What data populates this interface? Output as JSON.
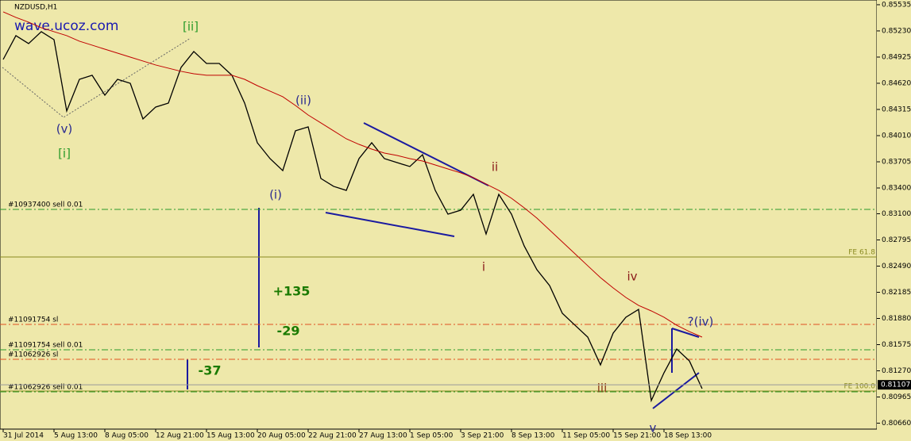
{
  "chart_data": {
    "type": "line",
    "title": "NZDUSD,H1",
    "watermark": "wave.ucoz.com",
    "categories": [
      "31 Jul 2014",
      null,
      null,
      null,
      "5 Aug 13:00",
      null,
      null,
      null,
      "8 Aug 05:00",
      null,
      null,
      null,
      "12 Aug 21:00",
      null,
      null,
      null,
      "15 Aug 13:00",
      null,
      null,
      null,
      "20 Aug 05:00",
      null,
      null,
      null,
      "22 Aug 21:00",
      null,
      null,
      null,
      "27 Aug 13:00",
      null,
      null,
      null,
      "1 Sep 05:00",
      null,
      null,
      null,
      "3 Sep 21:00",
      null,
      null,
      null,
      "8 Sep 13:00",
      null,
      null,
      null,
      "11 Sep 05:00",
      null,
      null,
      null,
      "15 Sep 21:00",
      null,
      null,
      null,
      "18 Sep 13:00",
      null,
      null,
      null
    ],
    "series": [
      {
        "color": "#000000",
        "values": [
          0.84897,
          0.85175,
          0.85082,
          0.85221,
          0.85128,
          0.84297,
          0.84666,
          0.84713,
          0.84481,
          0.84666,
          0.8462,
          0.84204,
          0.84343,
          0.84389,
          0.84805,
          0.8499,
          0.84851,
          0.84851,
          0.84713,
          0.84389,
          0.83927,
          0.83742,
          0.83603,
          0.84066,
          0.84112,
          0.83511,
          0.83419,
          0.83372,
          0.83742,
          0.83927,
          0.83742,
          0.83696,
          0.8365,
          0.83788,
          0.83372,
          0.83095,
          0.83141,
          0.83326,
          0.82864,
          0.83326,
          0.83095,
          0.82725,
          0.82448,
          0.82263,
          0.8194,
          0.81801,
          0.81663,
          0.81339,
          0.81709,
          0.81894,
          0.81986,
          0.80923,
          0.81247,
          0.81524,
          0.81385,
          0.81062
        ]
      },
      {
        "color": "#c00000",
        "values": [
          0.85452,
          0.85387,
          0.85332,
          0.85267,
          0.85221,
          0.85175,
          0.8511,
          0.85064,
          0.85017,
          0.84971,
          0.84925,
          0.84879,
          0.84833,
          0.84796,
          0.84759,
          0.84731,
          0.84713,
          0.84713,
          0.84713,
          0.84666,
          0.84592,
          0.84528,
          0.84463,
          0.84361,
          0.8425,
          0.84158,
          0.84066,
          0.83973,
          0.83908,
          0.83853,
          0.83807,
          0.83779,
          0.83742,
          0.83714,
          0.83668,
          0.83622,
          0.83576,
          0.8352,
          0.83446,
          0.83372,
          0.8328,
          0.83169,
          0.83049,
          0.8291,
          0.82772,
          0.82633,
          0.82494,
          0.82356,
          0.82236,
          0.82125,
          0.82032,
          0.81968,
          0.81894,
          0.81801,
          0.81727,
          0.81663
        ]
      }
    ],
    "ylim": [
      0.80591,
      0.8559
    ],
    "yticks": [
      0.85535,
      {
        "value": 0.8523,
        "label": "0.85230"
      },
      0.84925,
      {
        "value": 0.8462,
        "label": "0.84620"
      },
      0.84315,
      {
        "value": 0.8401,
        "label": "0.84010"
      },
      0.83705,
      {
        "value": 0.834,
        "label": "0.83400"
      },
      {
        "value": 0.831,
        "label": "0.83100"
      },
      0.82795,
      {
        "value": 0.8249,
        "label": "0.82490"
      },
      0.82185,
      {
        "value": 0.8188,
        "label": "0.81880"
      },
      0.81575,
      {
        "value": 0.8127,
        "label": "0.81270"
      },
      0.80965,
      {
        "value": 0.8066,
        "label": "0.80660"
      }
    ],
    "last_price": 0.81107,
    "levels": [
      {
        "label": "#10937400 sell 0.01",
        "value": 0.83151,
        "color": "#2a9a2a"
      },
      {
        "label": "FE 61.8",
        "value": 0.82596,
        "color": "#8a8a20"
      },
      {
        "label": "#11091754 sl",
        "value": 0.81811,
        "color": "#e05020"
      },
      {
        "label": "#11091754 sell 0.01",
        "value": 0.81515,
        "color": "#2a9a2a"
      },
      {
        "label": "#11062926 sl",
        "value": 0.81404,
        "color": "#e05020"
      },
      {
        "label": "#11062926 sell 0.01",
        "value": 0.81025,
        "color": "#2a9a2a"
      },
      {
        "label": "FE 100.0",
        "value": 0.81034,
        "color": "#8a8a20"
      }
    ],
    "annotations": [
      "(v)",
      "[i]",
      "[ii]",
      "(ii)",
      "(i)",
      "ii",
      "i",
      "iii",
      "iv",
      "v",
      "?(iv)",
      "+135",
      "-29",
      "-37"
    ]
  }
}
